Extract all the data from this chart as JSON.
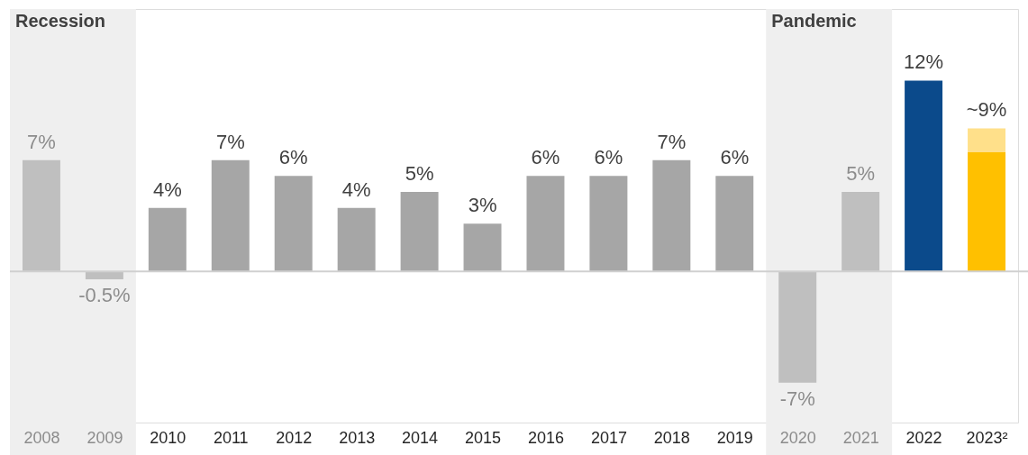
{
  "chart_data": {
    "type": "bar",
    "stacked": true,
    "categories": [
      "2008",
      "2009",
      "2010",
      "2011",
      "2012",
      "2013",
      "2014",
      "2015",
      "2016",
      "2017",
      "2018",
      "2019",
      "2020",
      "2021",
      "2022",
      "2023²"
    ],
    "series": [
      {
        "colors": [
          "#bfbfbf",
          "#bfbfbf",
          "#a6a6a6",
          "#a6a6a6",
          "#a6a6a6",
          "#a6a6a6",
          "#a6a6a6",
          "#a6a6a6",
          "#a6a6a6",
          "#a6a6a6",
          "#a6a6a6",
          "#a6a6a6",
          "#bfbfbf",
          "#bfbfbf",
          "#0b4a8b",
          "#ffc000"
        ],
        "values": [
          7,
          -0.5,
          4,
          7,
          6,
          4,
          5,
          3,
          6,
          6,
          7,
          6,
          -7,
          5,
          12,
          7.5
        ],
        "value_labels": [
          "7%",
          "-0.5%",
          "4%",
          "7%",
          "6%",
          "4%",
          "5%",
          "3%",
          "6%",
          "6%",
          "7%",
          "6%",
          "-7%",
          "5%",
          "12%",
          null
        ]
      },
      {
        "color": "#ffe08a",
        "values": [
          null,
          null,
          null,
          null,
          null,
          null,
          null,
          null,
          null,
          null,
          null,
          null,
          null,
          null,
          null,
          1.5
        ]
      }
    ],
    "totals": [
      null,
      null,
      null,
      null,
      null,
      null,
      null,
      null,
      null,
      null,
      null,
      null,
      null,
      null,
      null,
      "~9%"
    ],
    "ylim": [
      -9.5,
      16.5
    ],
    "tick_labels": "x",
    "bands": [
      {
        "axis": "x",
        "from": "2008",
        "to": "2009",
        "label": "Recession",
        "color": "#efefef"
      },
      {
        "axis": "x",
        "from": "2020",
        "to": "2021",
        "label": "Pandemic",
        "color": "#efefef"
      }
    ],
    "ref_lines": [
      {
        "axis": "y",
        "value": 0,
        "color": "#d0d0d0"
      }
    ],
    "grid": false
  }
}
